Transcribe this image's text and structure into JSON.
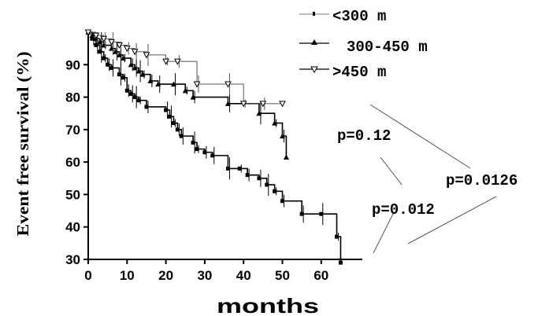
{
  "chart_data": {
    "type": "line",
    "xlabel": "months",
    "ylabel": "Event free survival (%)",
    "xlim": [
      0,
      70
    ],
    "ylim": [
      30,
      100
    ],
    "xticks": [
      "0",
      "10",
      "20",
      "30",
      "40",
      "50",
      "60"
    ],
    "yticks": [
      "30",
      "40",
      "50",
      "60",
      "70",
      "80",
      "90"
    ],
    "step": true,
    "grid": false,
    "legend_position": "top-right",
    "series": [
      {
        "name": "<300 m",
        "marker": "square",
        "color": "#000000",
        "x": [
          0,
          1,
          2,
          3,
          4,
          5,
          6,
          8,
          9,
          10,
          11,
          12,
          13,
          15,
          20,
          21,
          22,
          23,
          24,
          27,
          28,
          30,
          32,
          36,
          39,
          41,
          44,
          46,
          48,
          50,
          55,
          60,
          64,
          65
        ],
        "y": [
          100,
          98,
          96,
          94,
          92,
          90,
          89,
          87,
          86,
          82,
          81,
          80,
          79,
          77,
          76,
          74,
          72,
          70,
          68,
          66,
          64,
          63,
          62,
          58,
          58,
          56,
          55,
          53,
          51,
          48,
          44,
          44,
          37,
          29
        ]
      },
      {
        "name": "300-450 m",
        "marker": "triangle-up",
        "color": "#000000",
        "x": [
          0,
          1,
          2,
          3,
          4,
          6,
          7,
          8,
          9,
          11,
          12,
          13,
          14,
          16,
          18,
          22,
          25,
          27,
          36,
          44,
          48,
          50,
          51
        ],
        "y": [
          100,
          99,
          98,
          97,
          96,
          95,
          94,
          93,
          92,
          90,
          89,
          88,
          87,
          85,
          84,
          84,
          82,
          80,
          78,
          75,
          72,
          68,
          61.5
        ]
      },
      {
        "name": ">450 m",
        "marker": "triangle-down",
        "color": "#555555",
        "x": [
          0,
          2,
          4,
          6,
          8,
          10,
          12,
          15,
          20,
          23,
          28,
          36,
          40,
          45,
          50
        ],
        "y": [
          100,
          99,
          98,
          97,
          96,
          95,
          94,
          93,
          91,
          91,
          84,
          84,
          78,
          78,
          78
        ]
      }
    ],
    "annotations": [
      "p=0.12",
      "p=0.012",
      "p=0.0126"
    ]
  }
}
